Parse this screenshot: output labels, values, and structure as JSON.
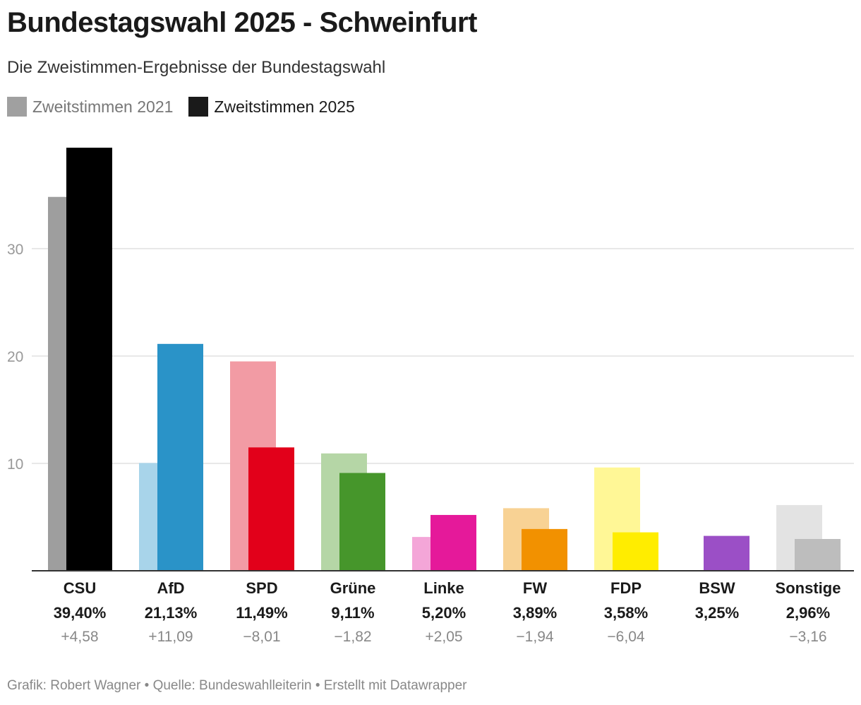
{
  "title": "Bundestagswahl 2025 - Schweinfurt",
  "subtitle": "Die Zweistimmen-Ergebnisse der Bundestagswahl",
  "legend": [
    {
      "label": "Zweitstimmen 2021",
      "color": "#a0a0a0",
      "text_color": "#777777"
    },
    {
      "label": "Zweitstimmen 2025",
      "color": "#1a1a1a",
      "text_color": "#1a1a1a"
    }
  ],
  "footer": "Grafik: Robert Wagner • Quelle: Bundeswahlleiterin • Erstellt mit Datawrapper",
  "chart_data": {
    "type": "bar",
    "categories": [
      "CSU",
      "AfD",
      "SPD",
      "Grüne",
      "Linke",
      "FW",
      "FDP",
      "BSW",
      "Sonstige"
    ],
    "series": [
      {
        "name": "Zweitstimmen 2021",
        "values": [
          34.82,
          10.04,
          19.5,
          10.93,
          3.15,
          5.83,
          9.62,
          null,
          6.12
        ]
      },
      {
        "name": "Zweitstimmen 2025",
        "values": [
          39.4,
          21.13,
          11.49,
          9.11,
          5.2,
          3.89,
          3.58,
          3.25,
          2.96
        ]
      }
    ],
    "value_labels": [
      "39,40%",
      "21,13%",
      "11,49%",
      "9,11%",
      "5,20%",
      "3,89%",
      "3,58%",
      "3,25%",
      "2,96%"
    ],
    "change_labels": [
      "+4,58",
      "+11,09",
      "−8,01",
      "−1,82",
      "+2,05",
      "−1,94",
      "−6,04",
      "",
      "−3,16"
    ],
    "colors_2025": [
      "#000000",
      "#2a93c8",
      "#e2001a",
      "#46962b",
      "#e5199a",
      "#f29100",
      "#ffed00",
      "#9b4fc6",
      "#bdbdbd"
    ],
    "colors_2021": [
      "#9e9e9e",
      "#a8d4ea",
      "#f29ba4",
      "#b5d6a6",
      "#f4a6d8",
      "#f8d294",
      "#fff796",
      "#d6b9e8",
      "#e3e3e3"
    ],
    "yticks": [
      10,
      20,
      30
    ],
    "ylim": [
      0,
      40
    ],
    "grid": true
  }
}
